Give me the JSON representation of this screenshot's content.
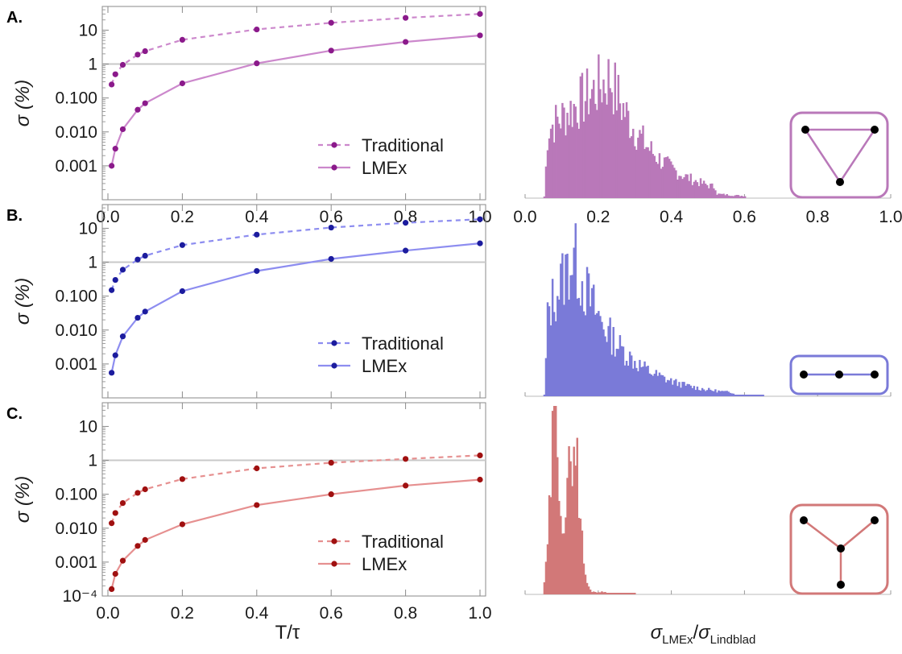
{
  "colors": {
    "A": {
      "point": "#8b1a8b",
      "line": "#cc88cc",
      "fill": "#b978b9"
    },
    "B": {
      "point": "#1c1c9e",
      "line": "#8d8df0",
      "fill": "#7a7ad8"
    },
    "C": {
      "point": "#a01010",
      "line": "#e69090",
      "fill": "#d27878"
    },
    "refline": "#c8c8c8",
    "frame": "#8a8a8a"
  },
  "chart_data": [
    {
      "type": "line",
      "panel": "A.",
      "xlabel": "T/τ",
      "ylabel": "σ (%)",
      "yscale": "log",
      "ylim": [
        0.0001,
        50
      ],
      "xlim": [
        0,
        1
      ],
      "xticks": [
        "0.0",
        "0.2",
        "0.4",
        "0.6",
        "0.8",
        "1.0"
      ],
      "yticks": [
        "0.001",
        "0.010",
        "0.100",
        "1",
        "10"
      ],
      "reference_line_y": 1,
      "x": [
        0.01,
        0.02,
        0.04,
        0.08,
        0.1,
        0.2,
        0.4,
        0.6,
        0.8,
        1.0
      ],
      "series": [
        {
          "name": "Traditional",
          "style": "dashed",
          "values": [
            0.25,
            0.5,
            0.95,
            1.9,
            2.4,
            5.2,
            10.5,
            16.5,
            23,
            30
          ]
        },
        {
          "name": "LMEx",
          "style": "solid",
          "values": [
            0.001,
            0.0032,
            0.012,
            0.045,
            0.07,
            0.27,
            1.05,
            2.5,
            4.5,
            7
          ]
        }
      ]
    },
    {
      "type": "line",
      "panel": "B.",
      "ylabel": "σ (%)",
      "yscale": "log",
      "ylim": [
        0.0001,
        50
      ],
      "xlim": [
        0,
        1
      ],
      "yticks": [
        "0.001",
        "0.010",
        "0.100",
        "1",
        "10"
      ],
      "reference_line_y": 1,
      "x": [
        0.01,
        0.02,
        0.04,
        0.08,
        0.1,
        0.2,
        0.4,
        0.6,
        0.8,
        1.0
      ],
      "series": [
        {
          "name": "Traditional",
          "style": "dashed",
          "values": [
            0.15,
            0.3,
            0.6,
            1.2,
            1.55,
            3.2,
            6.5,
            10.5,
            14.5,
            18.5
          ]
        },
        {
          "name": "LMEx",
          "style": "solid",
          "values": [
            0.00055,
            0.0018,
            0.0065,
            0.023,
            0.035,
            0.14,
            0.55,
            1.25,
            2.2,
            3.6
          ]
        }
      ]
    },
    {
      "type": "line",
      "panel": "C.",
      "xlabel": "T/τ",
      "ylabel": "σ (%)",
      "yscale": "log",
      "ylim": [
        0.0001,
        50
      ],
      "xlim": [
        0,
        1
      ],
      "xticks": [
        "0.0",
        "0.2",
        "0.4",
        "0.6",
        "0.8",
        "1.0"
      ],
      "yticks": [
        "10⁻⁴",
        "0.001",
        "0.010",
        "0.100",
        "1",
        "10"
      ],
      "reference_line_y": 1,
      "x": [
        0.01,
        0.02,
        0.04,
        0.08,
        0.1,
        0.2,
        0.4,
        0.6,
        0.8,
        1.0
      ],
      "series": [
        {
          "name": "Traditional",
          "style": "dashed",
          "values": [
            0.014,
            0.028,
            0.055,
            0.11,
            0.14,
            0.28,
            0.58,
            0.85,
            1.1,
            1.4
          ]
        },
        {
          "name": "LMEx",
          "style": "solid",
          "values": [
            0.00016,
            0.00045,
            0.0011,
            0.003,
            0.0045,
            0.013,
            0.048,
            0.1,
            0.18,
            0.27
          ]
        }
      ]
    },
    {
      "type": "bar",
      "panel": "A. histogram",
      "xlabel": "σLMEx/σLindblad",
      "xlim": [
        0,
        1
      ],
      "xticks": [
        "0.0",
        "0.2",
        "0.4",
        "0.6",
        "0.8",
        "1.0"
      ],
      "range": [
        0.05,
        0.6
      ],
      "peak": 0.23,
      "peak2": 0.11,
      "seed": 7,
      "inset": "triangle"
    },
    {
      "type": "bar",
      "panel": "B. histogram",
      "xlim": [
        0,
        1
      ],
      "range": [
        0.05,
        0.65
      ],
      "peak": 0.13,
      "peak2": 0.1,
      "seed": 13,
      "inset": "chain"
    },
    {
      "type": "bar",
      "panel": "C. histogram",
      "xlim": [
        0,
        1
      ],
      "range": [
        0.05,
        0.3
      ],
      "peak": 0.08,
      "peak2": 0.13,
      "seed": 29,
      "inset": "star"
    }
  ],
  "axis_labels": {
    "x_left": "T/τ",
    "x_right_main": "σ",
    "x_right_sub": "LMEx",
    "x_right_slash": "/",
    "x_right_main2": "σ",
    "x_right_sub2": "Lindblad"
  }
}
